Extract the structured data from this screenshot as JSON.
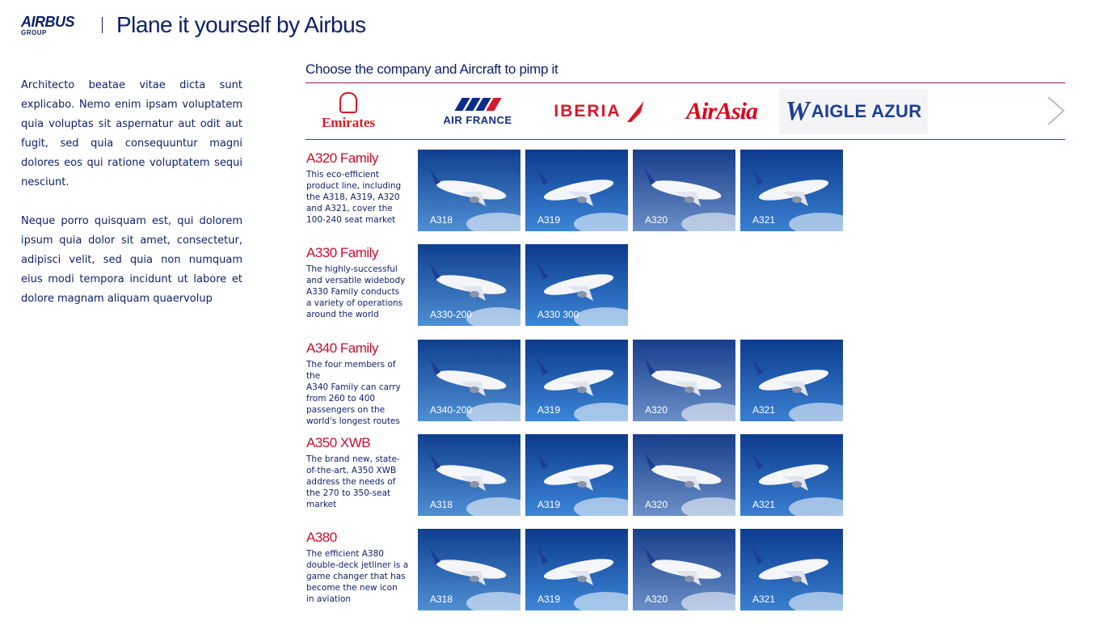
{
  "header": {
    "logo_main": "AIRBUS",
    "logo_sub": "GROUP",
    "title": "Plane it yourself by Airbus"
  },
  "intro": {
    "paragraphs": [
      "Architecto beatae vitae dicta sunt explicabo. Nemo enim ipsam voluptatem quia voluptas sit aspernatur aut odit aut fugit, sed quia consequuntur magni dolores eos qui ratione voluptatem sequi nesciunt.",
      "Neque porro quisquam est, qui dolorem ipsum quia dolor sit amet, consectetur, adipisci velit, sed quia non numquam eius modi tempora incidunt ut labore et dolore magnam aliquam quaervolup"
    ]
  },
  "companies": {
    "title": "Choose the company and Aircraft to pimp it",
    "items": [
      {
        "name": "Emirates",
        "color": "#d71920"
      },
      {
        "name": "AIR FRANCE",
        "color": "#0b2d8a"
      },
      {
        "name": "IBERIA",
        "color": "#d7192b"
      },
      {
        "name": "AirAsia",
        "color": "#e10019"
      },
      {
        "name": "AIGLE AZUR",
        "color": "#1c3f95"
      }
    ],
    "next_icon": "chevron-right-icon"
  },
  "families": [
    {
      "name": "A320 Family",
      "desc": [
        "This eco-efficient",
        "product line, including",
        "the A318, A319, A320",
        "and A321, cover the",
        "100-240 seat market"
      ],
      "aircraft": [
        "A318",
        "A319",
        "A320",
        "A321"
      ]
    },
    {
      "name": "A330 Family",
      "desc": [
        "The highly-successful",
        "and versatile widebody",
        "A330 Family conducts",
        "a variety of operations",
        "around the world"
      ],
      "aircraft": [
        "A330-200",
        "A330 300"
      ]
    },
    {
      "name": "A340 Family",
      "desc": [
        "The four members of the",
        "A340 Family can carry",
        "from 260 to 400",
        "passengers on the",
        "world's longest routes"
      ],
      "aircraft": [
        "A340-200",
        "A319",
        "A320",
        "A321"
      ]
    },
    {
      "name": "A350 XWB",
      "desc": [
        "The brand new, state-",
        "of-the-art, A350 XWB",
        "address the needs of",
        "the 270 to 350-seat",
        "market"
      ],
      "aircraft": [
        "A318",
        "A319",
        "A320",
        "A321"
      ]
    },
    {
      "name": "A380",
      "desc": [
        "The efficient A380",
        "double-deck jetliner is a",
        "game changer that has",
        "become the new icon",
        "in aviation"
      ],
      "aircraft": [
        "A318",
        "A319",
        "A320",
        "A321"
      ]
    }
  ],
  "colors": {
    "brand_navy": "#0c1f6b",
    "accent_red": "#c8102e",
    "rule_magenta": "#a0155a"
  }
}
